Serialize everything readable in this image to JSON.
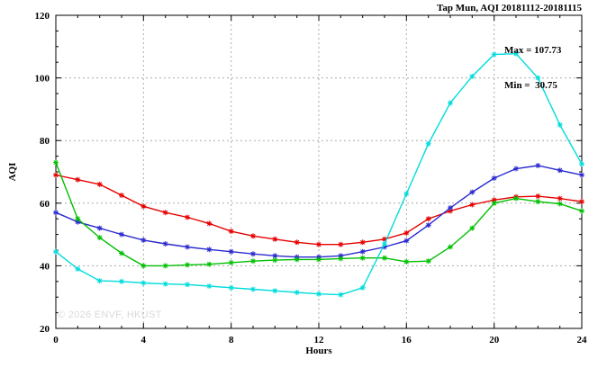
{
  "chart_data": {
    "type": "line",
    "title": "Tap Mun, AQI 20181112-20181115",
    "xlabel": "Hours",
    "ylabel": "AQI",
    "xlim": [
      0,
      24
    ],
    "ylim": [
      20,
      120
    ],
    "x_ticks": [
      0,
      4,
      8,
      12,
      16,
      20,
      24
    ],
    "y_ticks": [
      20,
      40,
      60,
      80,
      100,
      120
    ],
    "grid": true,
    "annotations": {
      "max_label": "Max = 107.73",
      "min_label": "Min =  30.75"
    },
    "watermark": "© 2026 ENVF, HKUST",
    "colors": {
      "grid": "#ababab",
      "frame": "#000000"
    },
    "x": [
      0,
      1,
      2,
      3,
      4,
      5,
      6,
      7,
      8,
      9,
      10,
      11,
      12,
      13,
      14,
      15,
      16,
      17,
      18,
      19,
      20,
      21,
      22,
      23,
      24
    ],
    "series": [
      {
        "name": "red",
        "color": "#e60000",
        "values": [
          69,
          67.5,
          66,
          62.5,
          59,
          57,
          55.5,
          53.5,
          51,
          49.5,
          48.5,
          47.5,
          46.8,
          46.8,
          47.5,
          48.5,
          50.5,
          55,
          57.5,
          59.5,
          61,
          62,
          62.2,
          61.5,
          60.5
        ]
      },
      {
        "name": "blue",
        "color": "#2a2ad0",
        "values": [
          57,
          54,
          52,
          50,
          48.2,
          47,
          46,
          45.2,
          44.5,
          43.8,
          43.2,
          42.8,
          42.8,
          43.2,
          44.5,
          46,
          48,
          53,
          58.5,
          63.5,
          68,
          71,
          72,
          70.5,
          69
        ]
      },
      {
        "name": "green",
        "color": "#00c000",
        "values": [
          73,
          55,
          49,
          44,
          40,
          40,
          40.3,
          40.5,
          41,
          41.5,
          41.8,
          42,
          42,
          42.3,
          42.5,
          42.5,
          41.3,
          41.5,
          46,
          52,
          60,
          61.5,
          60.5,
          59.8,
          57.5
        ]
      },
      {
        "name": "cyan",
        "color": "#00dcdc",
        "values": [
          44.5,
          39,
          35.2,
          35,
          34.5,
          34.2,
          34,
          33.5,
          33,
          32.5,
          32,
          31.5,
          31,
          30.75,
          33,
          47,
          63,
          79,
          92,
          100.5,
          107.5,
          107.73,
          100,
          85,
          72.5
        ]
      }
    ]
  }
}
